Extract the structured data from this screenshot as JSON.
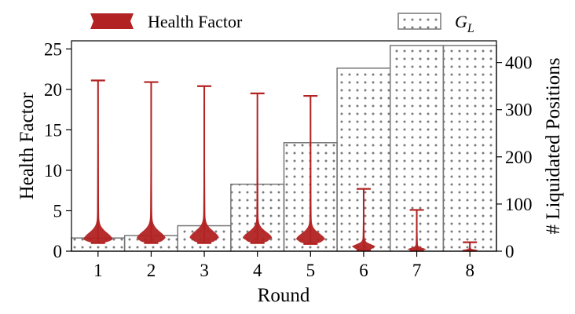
{
  "chart_data": {
    "type": "bar",
    "title": "",
    "xlabel": "Round",
    "ylabel_left": "Health Factor",
    "ylabel_right": "# Liquidated Positions",
    "categories": [
      "1",
      "2",
      "3",
      "4",
      "5",
      "6",
      "7",
      "8"
    ],
    "ylim_left": [
      0,
      26
    ],
    "ylim_right": [
      0,
      446
    ],
    "yticks_left": [
      "0",
      "5",
      "10",
      "15",
      "20",
      "25"
    ],
    "yticks_right": [
      "0",
      "100",
      "200",
      "300",
      "400"
    ],
    "legend": {
      "placement": "top",
      "entries": [
        {
          "label": "Health Factor",
          "style": "violin",
          "color": "#b22222"
        },
        {
          "label_main": "G",
          "label_sub": "L",
          "style": "dotted-bar"
        }
      ]
    },
    "series": [
      {
        "name": "G_L",
        "kind": "bar",
        "axis": "right",
        "values": [
          28,
          33,
          54,
          142,
          230,
          388,
          436,
          436
        ]
      },
      {
        "name": "Health Factor",
        "kind": "violin",
        "axis": "left",
        "color": "#b22222",
        "min": [
          1.0,
          1.0,
          1.0,
          1.0,
          0.9,
          0.15,
          0.05,
          0.05
        ],
        "max": [
          21.1,
          20.9,
          20.4,
          19.5,
          19.2,
          7.7,
          5.1,
          1.1
        ],
        "mode": [
          1.4,
          1.5,
          1.6,
          1.6,
          1.4,
          0.5,
          0.2,
          0.1
        ],
        "bulk_top": [
          3.2,
          3.3,
          3.4,
          3.2,
          3.0,
          1.2,
          0.6,
          0.3
        ]
      }
    ],
    "grid": false
  },
  "colors": {
    "violin": "#b22222",
    "bar_edge": "#777777",
    "dot": "#777777",
    "axis": "#000000"
  }
}
